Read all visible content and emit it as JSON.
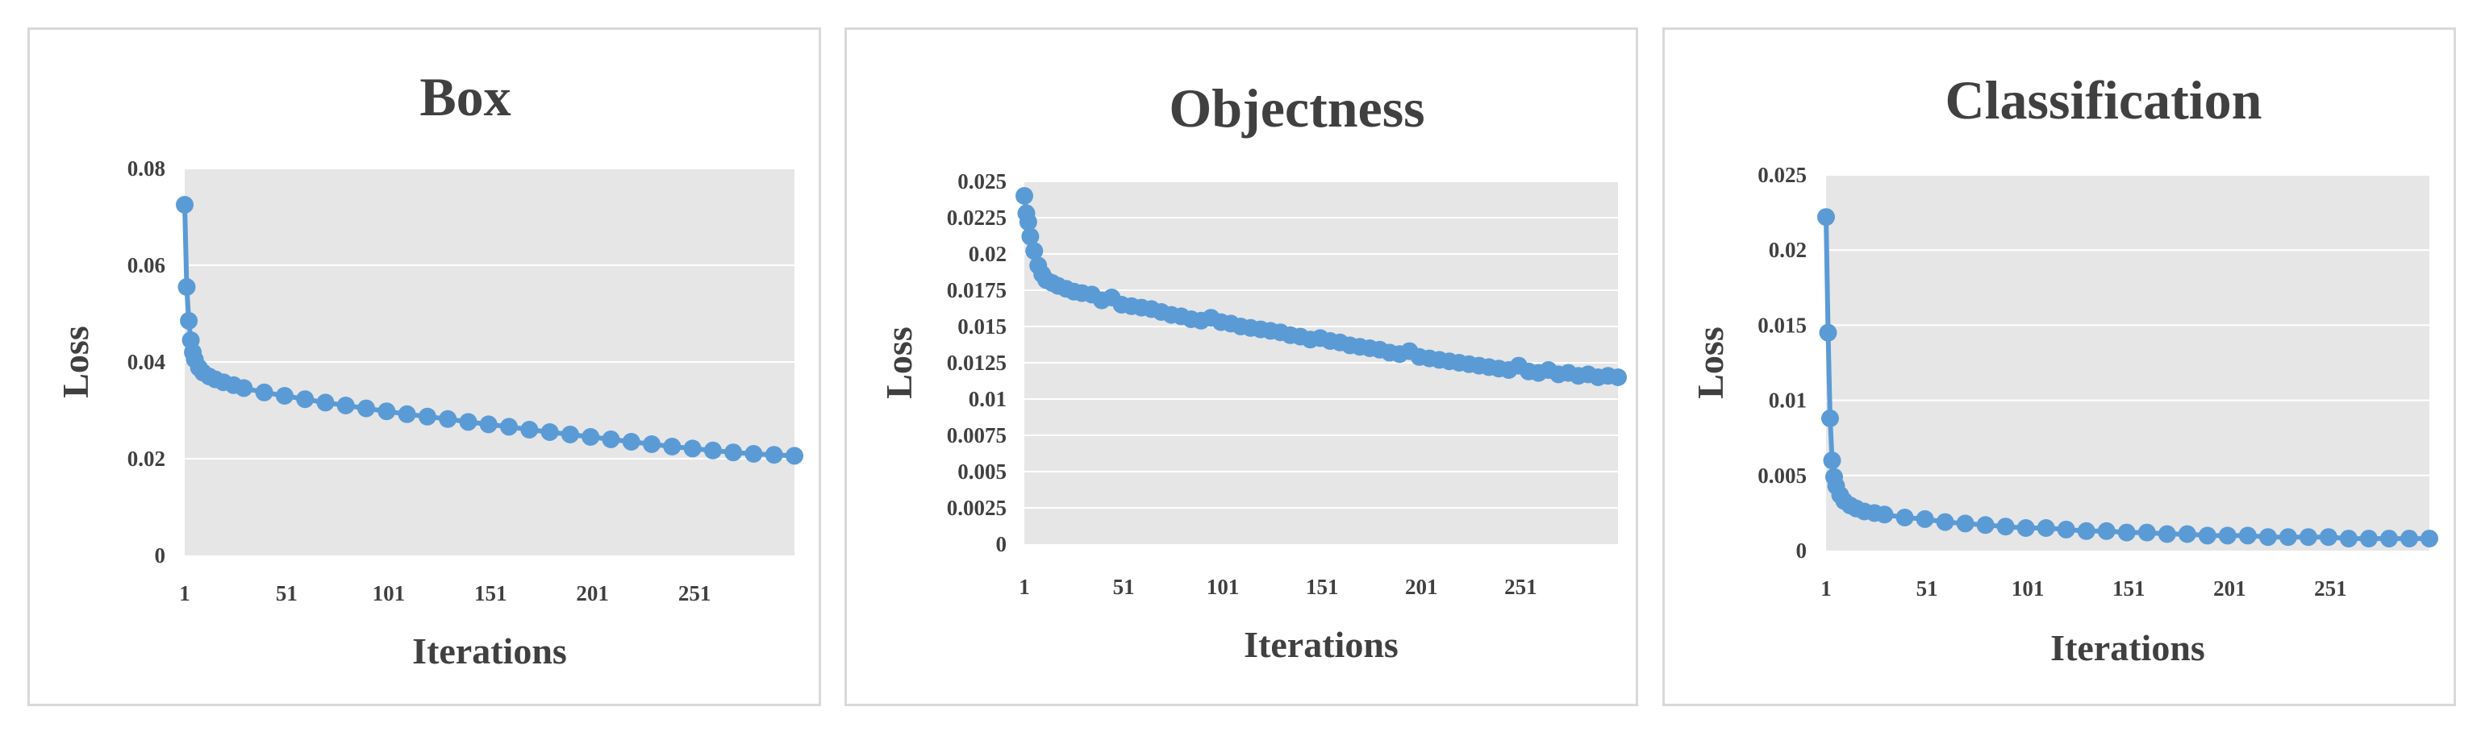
{
  "chart_data": [
    {
      "type": "line",
      "title": "Box",
      "xlabel": "Iterations",
      "ylabel": "Loss",
      "x_ticks": [
        "1",
        "51",
        "101",
        "151",
        "201",
        "251"
      ],
      "y_ticks": [
        "0",
        "0.02",
        "0.04",
        "0.06",
        "0.08"
      ],
      "xlim": [
        1,
        300
      ],
      "ylim": [
        0,
        0.08
      ],
      "grid": true,
      "color": "#5b9bd5",
      "x": [
        1,
        2,
        3,
        4,
        5,
        6,
        8,
        10,
        13,
        16,
        20,
        25,
        30,
        40,
        50,
        60,
        70,
        80,
        90,
        100,
        110,
        120,
        130,
        140,
        150,
        160,
        170,
        180,
        190,
        200,
        210,
        220,
        230,
        240,
        250,
        260,
        270,
        280,
        290,
        300
      ],
      "values": [
        0.0725,
        0.0555,
        0.0485,
        0.0445,
        0.042,
        0.0405,
        0.0388,
        0.0378,
        0.037,
        0.0364,
        0.0358,
        0.0352,
        0.0346,
        0.0337,
        0.033,
        0.0323,
        0.0316,
        0.031,
        0.0304,
        0.0298,
        0.0292,
        0.0287,
        0.0282,
        0.0276,
        0.0271,
        0.0266,
        0.026,
        0.0255,
        0.025,
        0.0245,
        0.024,
        0.0235,
        0.023,
        0.0225,
        0.0221,
        0.0217,
        0.0213,
        0.021,
        0.0208,
        0.0206
      ]
    },
    {
      "type": "line",
      "title": "Objectness",
      "xlabel": "Iterations",
      "ylabel": "Loss",
      "x_ticks": [
        "1",
        "51",
        "101",
        "151",
        "201",
        "251"
      ],
      "y_ticks": [
        "0",
        "0.0025",
        "0.005",
        "0.0075",
        "0.01",
        "0.0125",
        "0.015",
        "0.0175",
        "0.02",
        "0.0225",
        "0.025"
      ],
      "xlim": [
        1,
        300
      ],
      "ylim": [
        0,
        0.025
      ],
      "grid": true,
      "color": "#5b9bd5",
      "x": [
        1,
        2,
        3,
        4,
        6,
        8,
        10,
        12,
        15,
        18,
        22,
        26,
        30,
        35,
        40,
        45,
        50,
        55,
        60,
        65,
        70,
        75,
        80,
        85,
        90,
        95,
        100,
        105,
        110,
        115,
        120,
        125,
        130,
        135,
        140,
        145,
        150,
        155,
        160,
        165,
        170,
        175,
        180,
        185,
        190,
        195,
        200,
        205,
        210,
        215,
        220,
        225,
        230,
        235,
        240,
        245,
        250,
        255,
        260,
        265,
        270,
        275,
        280,
        285,
        290,
        295,
        300
      ],
      "values": [
        0.024,
        0.0228,
        0.0222,
        0.0212,
        0.0202,
        0.0192,
        0.0186,
        0.0182,
        0.018,
        0.0178,
        0.0176,
        0.0174,
        0.0173,
        0.0172,
        0.0168,
        0.017,
        0.0165,
        0.0164,
        0.0163,
        0.0162,
        0.016,
        0.0158,
        0.0157,
        0.0155,
        0.0154,
        0.0156,
        0.0153,
        0.0152,
        0.015,
        0.0149,
        0.0148,
        0.0147,
        0.0146,
        0.0144,
        0.0143,
        0.0141,
        0.0142,
        0.014,
        0.0139,
        0.0137,
        0.0136,
        0.0135,
        0.0134,
        0.0132,
        0.0131,
        0.0133,
        0.0129,
        0.0128,
        0.0127,
        0.0126,
        0.0125,
        0.0124,
        0.0123,
        0.0122,
        0.0121,
        0.012,
        0.0123,
        0.0119,
        0.0118,
        0.012,
        0.0117,
        0.0118,
        0.0116,
        0.0117,
        0.0115,
        0.0116,
        0.0115
      ]
    },
    {
      "type": "line",
      "title": "Classification",
      "xlabel": "Iterations",
      "ylabel": "Loss",
      "x_ticks": [
        "1",
        "51",
        "101",
        "151",
        "201",
        "251"
      ],
      "y_ticks": [
        "0",
        "0.005",
        "0.01",
        "0.015",
        "0.02",
        "0.025"
      ],
      "xlim": [
        1,
        300
      ],
      "ylim": [
        0,
        0.025
      ],
      "grid": true,
      "color": "#5b9bd5",
      "x": [
        1,
        2,
        3,
        4,
        5,
        6,
        8,
        10,
        13,
        16,
        20,
        25,
        30,
        40,
        50,
        60,
        70,
        80,
        90,
        100,
        110,
        120,
        130,
        140,
        150,
        160,
        170,
        180,
        190,
        200,
        210,
        220,
        230,
        240,
        250,
        260,
        270,
        280,
        290,
        300
      ],
      "values": [
        0.0222,
        0.0145,
        0.0088,
        0.006,
        0.0049,
        0.0043,
        0.0037,
        0.0033,
        0.003,
        0.0028,
        0.0026,
        0.0025,
        0.0024,
        0.0022,
        0.0021,
        0.0019,
        0.0018,
        0.0017,
        0.0016,
        0.0015,
        0.0015,
        0.0014,
        0.0013,
        0.0013,
        0.0012,
        0.0012,
        0.0011,
        0.0011,
        0.001,
        0.001,
        0.001,
        0.0009,
        0.0009,
        0.0009,
        0.0009,
        0.0008,
        0.0008,
        0.0008,
        0.0008,
        0.0008
      ]
    }
  ]
}
